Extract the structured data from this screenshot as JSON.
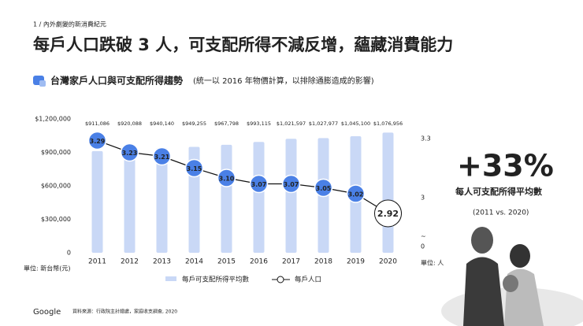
{
  "header": {
    "section": "1 / 內外劇變的新消費紀元",
    "title": "每戶人口跌破 3 人，可支配所得不減反增，蘊藏消費能力",
    "subtitle": "台灣家戶人口與可支配所得趨勢",
    "note": "(統一以 2016 年物價計算，以排除通膨造成的影響)"
  },
  "chart_data": {
    "type": "bar_line",
    "categories": [
      "2011",
      "2012",
      "2013",
      "2014",
      "2015",
      "2016",
      "2017",
      "2018",
      "2019",
      "2020"
    ],
    "series": [
      {
        "name": "每戶可支配所得平均數",
        "color": "#c9d8f6",
        "values": [
          911086,
          920088,
          940140,
          949255,
          967798,
          993115,
          1021597,
          1027977,
          1045100,
          1076956
        ],
        "value_labels": [
          "$911,086",
          "$920,088",
          "$940,140",
          "$949,255",
          "$967,798",
          "$993,115",
          "$1,021,597",
          "$1,027,977",
          "$1,045,100",
          "$1,076,956"
        ]
      },
      {
        "name": "每戶人口",
        "axis": "y2",
        "color": "#4a80e6",
        "values": [
          3.29,
          3.23,
          3.21,
          3.15,
          3.1,
          3.07,
          3.07,
          3.05,
          3.02,
          2.92
        ],
        "value_labels": [
          "3.29",
          "3.23",
          "3.21",
          "3.15",
          "3.10",
          "3.07",
          "3.07",
          "3.05",
          "3.02",
          "2.92"
        ]
      }
    ],
    "ylim": [
      0,
      1200000
    ],
    "yticks": [
      0,
      {
        "value": 300000,
        "label": "$300,000"
      },
      {
        "value": 600000,
        "label": "$600,000"
      },
      {
        "value": 900000,
        "label": "$900,000"
      },
      {
        "value": 1200000,
        "label": "$1,200,000"
      }
    ],
    "y2lim": [
      2.72,
      3.4
    ],
    "y2ticks": [
      3,
      3.3
    ],
    "y2_break": {
      "symbol": "~",
      "label": "0"
    },
    "ylabel": "單位: 新台幣(元)",
    "y2label": "單位: 人",
    "highlight_last": true,
    "grid": false
  },
  "highlight": {
    "stat": "+33%",
    "label": "每人可支配所得平均數",
    "period": "(2011 vs. 2020)"
  },
  "footer": {
    "logo": "Google",
    "source": "資料來源：行政院主計總處，家庭收支調查, 2020"
  }
}
